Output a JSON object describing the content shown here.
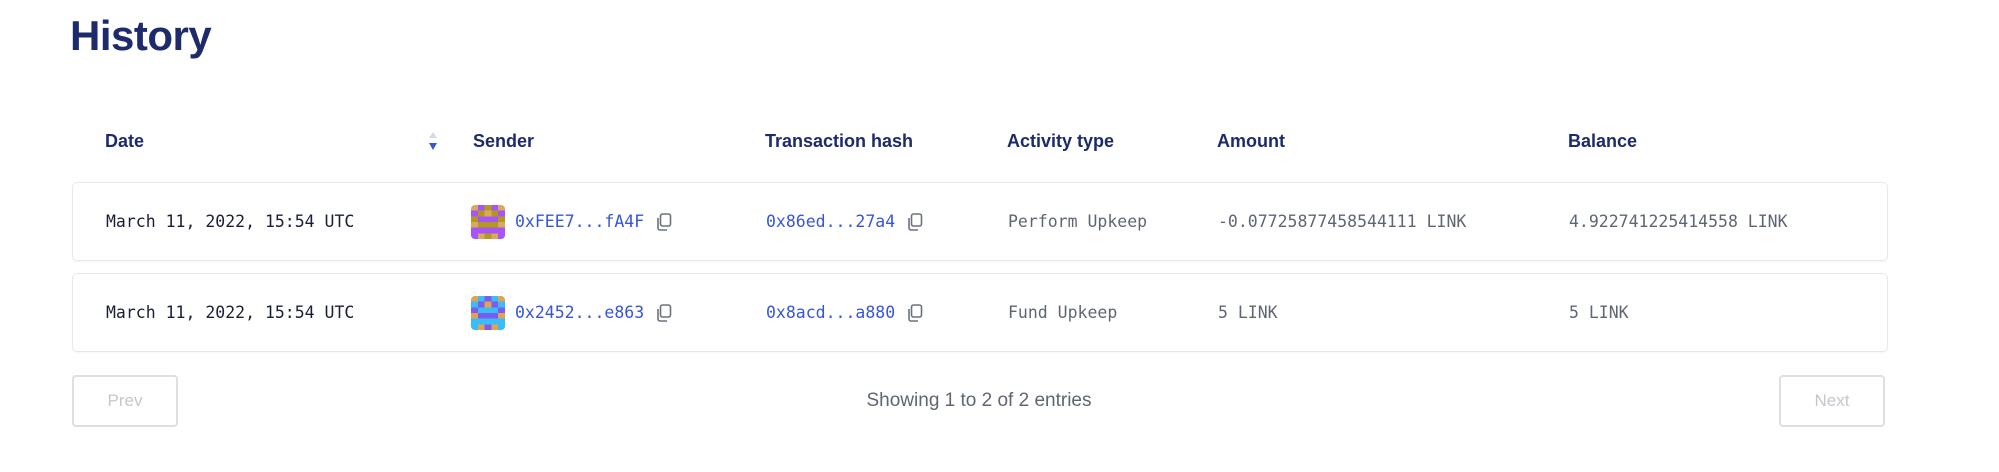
{
  "page": {
    "title": "History"
  },
  "table": {
    "columns": [
      "Date",
      "Sender",
      "Transaction hash",
      "Activity type",
      "Amount",
      "Balance"
    ],
    "sort": {
      "column": "Date",
      "direction": "descending"
    },
    "rows": [
      {
        "date": "March 11, 2022, 15:54 UTC",
        "sender": "0xFEE7...fA4F",
        "sender_avatar": [
          "#d9a95e",
          "#a855f7",
          "#b39a1f"
        ],
        "tx_hash": "0x86ed...27a4",
        "activity": "Perform Upkeep",
        "amount": "-0.07725877458544111 LINK",
        "balance": "4.922741225414558 LINK"
      },
      {
        "date": "March 11, 2022, 15:54 UTC",
        "sender": "0x2452...e863",
        "sender_avatar": [
          "#dfa44e",
          "#38bdf8",
          "#7c5cf0"
        ],
        "tx_hash": "0x8acd...a880",
        "activity": "Fund Upkeep",
        "amount": "5 LINK",
        "balance": "5 LINK"
      }
    ]
  },
  "pagination": {
    "prev_label": "Prev",
    "next_label": "Next",
    "status": "Showing 1 to 2 of 2 entries",
    "prev_disabled": true,
    "next_disabled": true
  },
  "colors": {
    "title": "#1d2a6b",
    "link": "#3756d6",
    "sort_active": "#3756d6"
  }
}
